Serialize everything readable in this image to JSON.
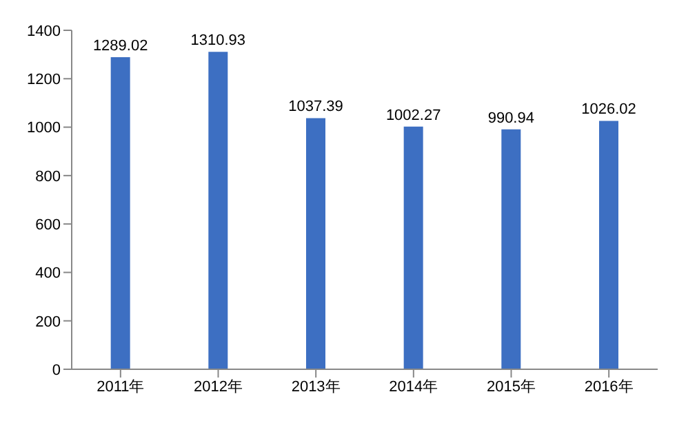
{
  "chart_data": {
    "type": "bar",
    "categories": [
      "2011年",
      "2012年",
      "2013年",
      "2014年",
      "2015年",
      "2016年"
    ],
    "values": [
      1289.02,
      1310.93,
      1037.39,
      1002.27,
      990.94,
      1026.02
    ],
    "color": "#3d6fc2",
    "ylim": [
      0,
      1400
    ],
    "yticks": [
      0,
      200,
      400,
      600,
      800,
      1000,
      1200,
      1400
    ],
    "grid": false,
    "data_labels": true
  }
}
